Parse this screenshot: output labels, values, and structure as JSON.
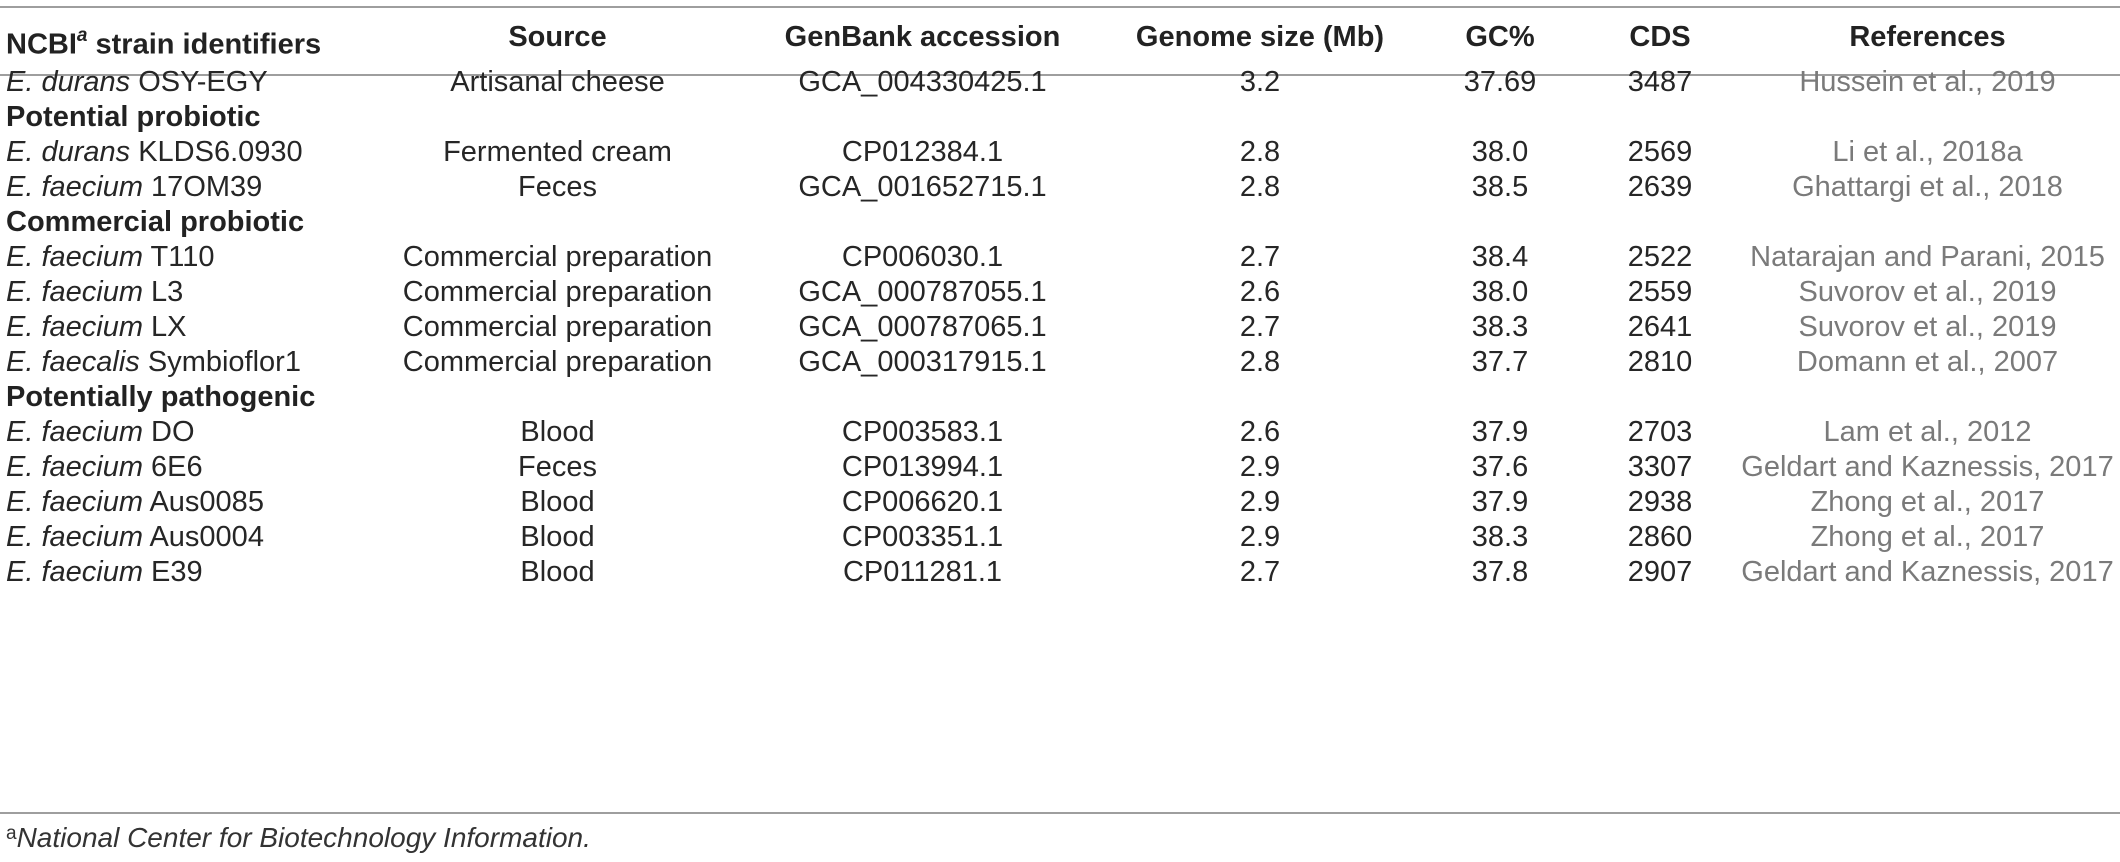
{
  "header": {
    "col1_prefix": "NCBI",
    "col1_sup": "a",
    "col1_suffix": " strain identifiers",
    "col2": "Source",
    "col3": "GenBank accession",
    "col4": "Genome size (Mb)",
    "col5": "GC%",
    "col6": "CDS",
    "col7": "References"
  },
  "rows": [
    {
      "genus": "E. durans",
      "strain": " OSY-EGY",
      "source": "Artisanal cheese",
      "accession": "GCA_004330425.1",
      "size": "3.2",
      "gc": "37.69",
      "cds": "3487",
      "ref": "Hussein et al., 2019"
    },
    {
      "section": "Potential probiotic"
    },
    {
      "genus": "E. durans",
      "strain": " KLDS6.0930",
      "source": "Fermented cream",
      "accession": "CP012384.1",
      "size": "2.8",
      "gc": "38.0",
      "cds": "2569",
      "ref": "Li et al., 2018a"
    },
    {
      "genus": "E. faecium",
      "strain": " 17OM39",
      "source": "Feces",
      "accession": "GCA_001652715.1",
      "size": "2.8",
      "gc": "38.5",
      "cds": "2639",
      "ref": "Ghattargi et al., 2018"
    },
    {
      "section": "Commercial probiotic"
    },
    {
      "genus": "E. faecium",
      "strain": " T110",
      "source": "Commercial preparation",
      "accession": "CP006030.1",
      "size": "2.7",
      "gc": "38.4",
      "cds": "2522",
      "ref": "Natarajan and Parani, 2015"
    },
    {
      "genus": "E. faecium",
      "strain": " L3",
      "source": "Commercial preparation",
      "accession": "GCA_000787055.1",
      "size": "2.6",
      "gc": "38.0",
      "cds": "2559",
      "ref": "Suvorov et al., 2019"
    },
    {
      "genus": "E. faecium",
      "strain": " LX",
      "source": "Commercial preparation",
      "accession": "GCA_000787065.1",
      "size": "2.7",
      "gc": "38.3",
      "cds": "2641",
      "ref": "Suvorov et al., 2019"
    },
    {
      "genus": "E. faecalis",
      "strain": " Symbioflor1",
      "source": "Commercial preparation",
      "accession": "GCA_000317915.1",
      "size": "2.8",
      "gc": "37.7",
      "cds": "2810",
      "ref": "Domann et al., 2007"
    },
    {
      "section": "Potentially pathogenic"
    },
    {
      "genus": "E. faecium",
      "strain": " DO",
      "source": "Blood",
      "accession": "CP003583.1",
      "size": "2.6",
      "gc": "37.9",
      "cds": "2703",
      "ref": "Lam et al., 2012"
    },
    {
      "genus": "E. faecium",
      "strain": " 6E6",
      "source": "Feces",
      "accession": "CP013994.1",
      "size": "2.9",
      "gc": "37.6",
      "cds": "3307",
      "ref": "Geldart and Kaznessis, 2017"
    },
    {
      "genus": "E. faecium",
      "strain": " Aus0085",
      "source": "Blood",
      "accession": "CP006620.1",
      "size": "2.9",
      "gc": "37.9",
      "cds": "2938",
      "ref": "Zhong et al., 2017"
    },
    {
      "genus": "E. faecium",
      "strain": " Aus0004",
      "source": "Blood",
      "accession": "CP003351.1",
      "size": "2.9",
      "gc": "38.3",
      "cds": "2860",
      "ref": "Zhong et al., 2017"
    },
    {
      "genus": "E. faecium",
      "strain": " E39",
      "source": "Blood",
      "accession": "CP011281.1",
      "size": "2.7",
      "gc": "37.8",
      "cds": "2907",
      "ref": "Geldart and Kaznessis, 2017"
    }
  ],
  "footnote": {
    "mark": "a",
    "text": "National Center for Biotechnology Information."
  },
  "colors": {
    "text": "#262626",
    "reference_text": "#7a7a7a",
    "rule": "#9e9e9e"
  }
}
